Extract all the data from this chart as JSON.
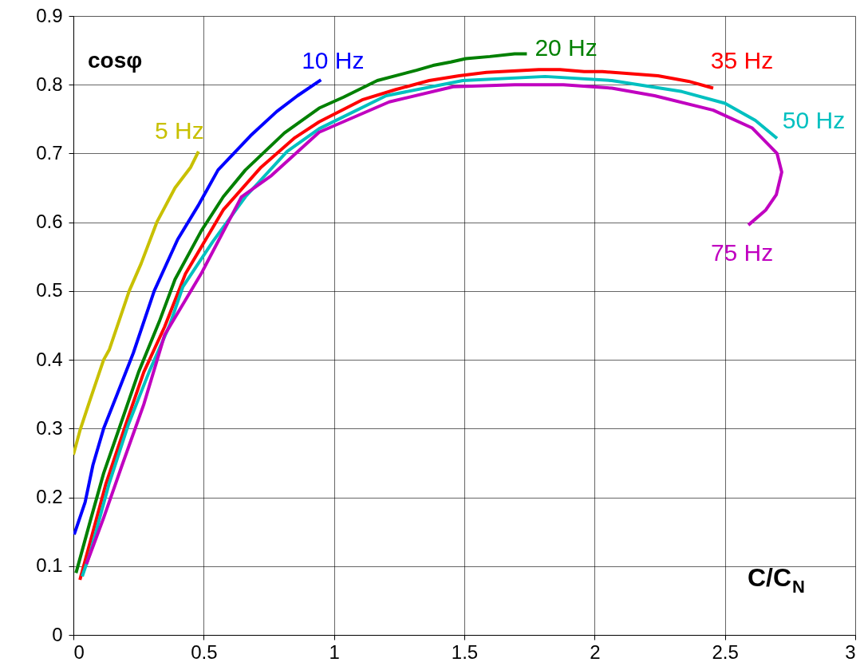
{
  "chart_data": {
    "type": "line",
    "ylabel": "cosφ",
    "xlabel": "C/C$_{N}$",
    "xlim": [
      0,
      3
    ],
    "xticks": [
      0,
      0.5,
      1,
      1.5,
      2,
      2.5,
      3
    ],
    "ylim": [
      0,
      0.9
    ],
    "yticks": [
      0,
      0.1,
      0.2,
      0.3,
      0.4,
      0.5,
      0.6,
      0.7,
      0.8,
      0.9
    ],
    "grid": true,
    "marker": "none",
    "line_style": "solid",
    "series": [
      {
        "name": "5 Hz",
        "color": "#c8c000",
        "x": [
          0,
          0.025,
          0.065,
          0.116,
          0.138,
          0.214,
          0.26,
          0.32,
          0.39,
          0.45,
          0.48
        ],
        "values": [
          0.262,
          0.297,
          0.343,
          0.4,
          0.415,
          0.5,
          0.54,
          0.6,
          0.65,
          0.68,
          0.703
        ]
      },
      {
        "name": "10 Hz",
        "color": "#0000ff",
        "x": [
          0.003,
          0.045,
          0.075,
          0.116,
          0.168,
          0.23,
          0.31,
          0.4,
          0.48,
          0.555,
          0.68,
          0.78,
          0.86,
          0.95
        ],
        "values": [
          0.146,
          0.193,
          0.247,
          0.3,
          0.35,
          0.41,
          0.5,
          0.575,
          0.625,
          0.676,
          0.726,
          0.761,
          0.784,
          0.807
        ]
      },
      {
        "name": "20 Hz",
        "color": "#008000",
        "x": [
          0.01,
          0.065,
          0.116,
          0.18,
          0.25,
          0.33,
          0.39,
          0.49,
          0.575,
          0.66,
          0.81,
          0.943,
          1.037,
          1.166,
          1.246,
          1.316,
          1.38,
          1.448,
          1.506,
          1.598,
          1.693,
          1.74
        ],
        "values": [
          0.09,
          0.166,
          0.235,
          0.305,
          0.382,
          0.456,
          0.517,
          0.587,
          0.637,
          0.676,
          0.73,
          0.766,
          0.782,
          0.806,
          0.814,
          0.821,
          0.828,
          0.833,
          0.838,
          0.841,
          0.845,
          0.845
        ]
      },
      {
        "name": "35 Hz",
        "color": "#ff0000",
        "x": [
          0.025,
          0.075,
          0.125,
          0.2,
          0.27,
          0.35,
          0.43,
          0.575,
          0.72,
          0.85,
          0.943,
          1.108,
          1.237,
          1.365,
          1.48,
          1.585,
          1.786,
          1.867,
          1.96,
          2.03,
          2.243,
          2.36,
          2.455
        ],
        "values": [
          0.08,
          0.15,
          0.22,
          0.305,
          0.382,
          0.448,
          0.525,
          0.618,
          0.68,
          0.723,
          0.746,
          0.778,
          0.793,
          0.806,
          0.813,
          0.818,
          0.822,
          0.822,
          0.819,
          0.819,
          0.813,
          0.805,
          0.795
        ]
      },
      {
        "name": "50 Hz",
        "color": "#00c0c0",
        "x": [
          0.034,
          0.065,
          0.137,
          0.21,
          0.29,
          0.37,
          0.42,
          0.535,
          0.66,
          0.82,
          0.943,
          1.2,
          1.494,
          1.81,
          2.066,
          2.335,
          2.5,
          2.617,
          2.7
        ],
        "values": [
          0.085,
          0.12,
          0.22,
          0.305,
          0.382,
          0.451,
          0.506,
          0.572,
          0.637,
          0.703,
          0.736,
          0.784,
          0.806,
          0.812,
          0.806,
          0.79,
          0.773,
          0.748,
          0.722
        ]
      },
      {
        "name": "75 Hz",
        "color": "#c000c0",
        "x": [
          0.05,
          0.116,
          0.187,
          0.27,
          0.35,
          0.49,
          0.645,
          0.76,
          0.943,
          1.212,
          1.457,
          1.693,
          1.88,
          2.066,
          2.23,
          2.455,
          2.605,
          2.7,
          2.718,
          2.697,
          2.657,
          2.59
        ],
        "values": [
          0.103,
          0.17,
          0.247,
          0.335,
          0.436,
          0.525,
          0.637,
          0.668,
          0.731,
          0.775,
          0.797,
          0.8,
          0.8,
          0.795,
          0.784,
          0.763,
          0.737,
          0.7,
          0.673,
          0.64,
          0.618,
          0.596
        ]
      }
    ]
  }
}
